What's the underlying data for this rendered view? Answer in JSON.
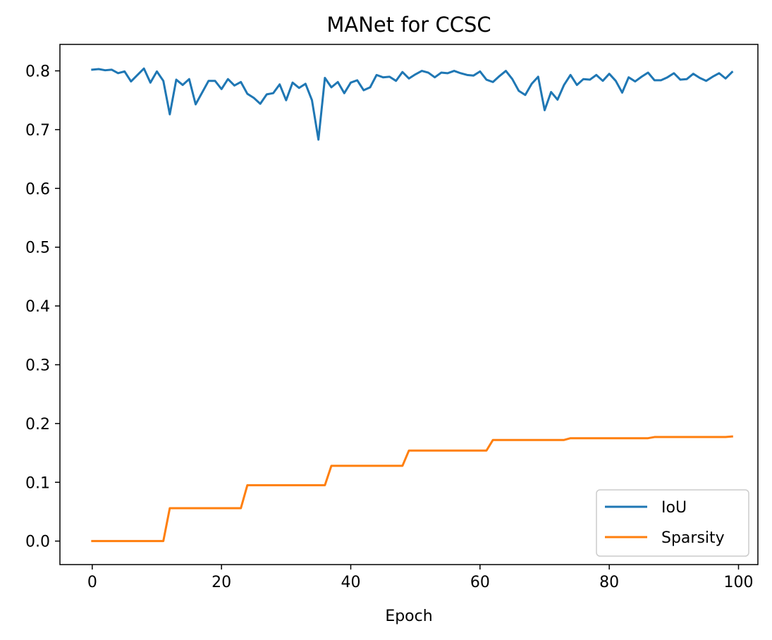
{
  "chart_data": {
    "type": "line",
    "title": "MANet for CCSC",
    "xlabel": "Epoch",
    "ylabel": "",
    "xlim": [
      -5,
      103
    ],
    "ylim": [
      -0.04,
      0.845
    ],
    "xticks": [
      0,
      20,
      40,
      60,
      80,
      100
    ],
    "xtick_labels": [
      "0",
      "20",
      "40",
      "60",
      "80",
      "100"
    ],
    "yticks": [
      0.0,
      0.1,
      0.2,
      0.3,
      0.4,
      0.5,
      0.6,
      0.7,
      0.8
    ],
    "ytick_labels": [
      "0.0",
      "0.1",
      "0.2",
      "0.3",
      "0.4",
      "0.5",
      "0.6",
      "0.7",
      "0.8"
    ],
    "grid": false,
    "legend": {
      "position": "bottom-right",
      "entries": [
        "IoU",
        "Sparsity"
      ]
    },
    "x": [
      0,
      1,
      2,
      3,
      4,
      5,
      6,
      7,
      8,
      9,
      10,
      11,
      12,
      13,
      14,
      15,
      16,
      17,
      18,
      19,
      20,
      21,
      22,
      23,
      24,
      25,
      26,
      27,
      28,
      29,
      30,
      31,
      32,
      33,
      34,
      35,
      36,
      37,
      38,
      39,
      40,
      41,
      42,
      43,
      44,
      45,
      46,
      47,
      48,
      49,
      50,
      51,
      52,
      53,
      54,
      55,
      56,
      57,
      58,
      59,
      60,
      61,
      62,
      63,
      64,
      65,
      66,
      67,
      68,
      69,
      70,
      71,
      72,
      73,
      74,
      75,
      76,
      77,
      78,
      79,
      80,
      81,
      82,
      83,
      84,
      85,
      86,
      87,
      88,
      89,
      90,
      91,
      92,
      93,
      94,
      95,
      96,
      97,
      98,
      99
    ],
    "series": [
      {
        "name": "IoU",
        "color": "#1f77b4",
        "values": [
          0.802,
          0.803,
          0.801,
          0.802,
          0.796,
          0.799,
          0.782,
          0.793,
          0.804,
          0.78,
          0.799,
          0.783,
          0.726,
          0.785,
          0.776,
          0.786,
          0.743,
          0.763,
          0.783,
          0.783,
          0.769,
          0.786,
          0.775,
          0.781,
          0.761,
          0.754,
          0.744,
          0.76,
          0.762,
          0.777,
          0.75,
          0.78,
          0.771,
          0.778,
          0.75,
          0.683,
          0.788,
          0.772,
          0.781,
          0.762,
          0.78,
          0.784,
          0.767,
          0.772,
          0.793,
          0.789,
          0.79,
          0.783,
          0.798,
          0.787,
          0.794,
          0.8,
          0.797,
          0.789,
          0.797,
          0.796,
          0.8,
          0.796,
          0.793,
          0.792,
          0.799,
          0.785,
          0.781,
          0.791,
          0.8,
          0.786,
          0.766,
          0.759,
          0.778,
          0.79,
          0.733,
          0.764,
          0.751,
          0.776,
          0.793,
          0.776,
          0.786,
          0.785,
          0.793,
          0.783,
          0.795,
          0.783,
          0.763,
          0.789,
          0.782,
          0.79,
          0.797,
          0.784,
          0.784,
          0.789,
          0.796,
          0.785,
          0.786,
          0.795,
          0.788,
          0.783,
          0.79,
          0.796,
          0.787,
          0.798
        ]
      },
      {
        "name": "Sparsity",
        "color": "#ff7f0e",
        "values": [
          0,
          0,
          0,
          0,
          0,
          0,
          0,
          0,
          0,
          0,
          0,
          0,
          0.056,
          0.056,
          0.056,
          0.056,
          0.056,
          0.056,
          0.056,
          0.056,
          0.056,
          0.056,
          0.056,
          0.056,
          0.095,
          0.095,
          0.095,
          0.095,
          0.095,
          0.095,
          0.095,
          0.095,
          0.095,
          0.095,
          0.095,
          0.095,
          0.095,
          0.128,
          0.128,
          0.128,
          0.128,
          0.128,
          0.128,
          0.128,
          0.128,
          0.128,
          0.128,
          0.128,
          0.128,
          0.154,
          0.154,
          0.154,
          0.154,
          0.154,
          0.154,
          0.154,
          0.154,
          0.154,
          0.154,
          0.154,
          0.154,
          0.154,
          0.172,
          0.172,
          0.172,
          0.172,
          0.172,
          0.172,
          0.172,
          0.172,
          0.172,
          0.172,
          0.172,
          0.172,
          0.175,
          0.175,
          0.175,
          0.175,
          0.175,
          0.175,
          0.175,
          0.175,
          0.175,
          0.175,
          0.175,
          0.175,
          0.175,
          0.177,
          0.177,
          0.177,
          0.177,
          0.177,
          0.177,
          0.177,
          0.177,
          0.177,
          0.177,
          0.177,
          0.177,
          0.178
        ]
      }
    ]
  }
}
